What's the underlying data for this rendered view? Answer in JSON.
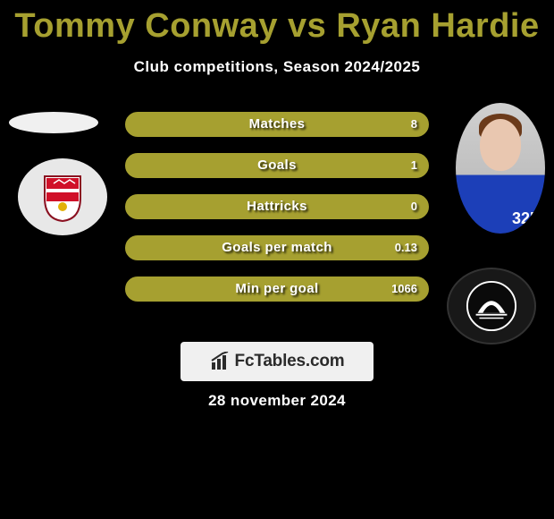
{
  "title_color": "#a6a030",
  "title_parts": {
    "player1": "Tommy Conway",
    "vs": "vs",
    "player2": "Ryan Hardie"
  },
  "subtitle": "Club competitions, Season 2024/2025",
  "bar_border_color": "#a6a030",
  "bar_fill_color": "#a6a030",
  "bars": [
    {
      "label": "Matches",
      "left": "",
      "right": "8"
    },
    {
      "label": "Goals",
      "left": "",
      "right": "1"
    },
    {
      "label": "Hattricks",
      "left": "",
      "right": "0"
    },
    {
      "label": "Goals per match",
      "left": "",
      "right": "0.13"
    },
    {
      "label": "Min per goal",
      "left": "",
      "right": "1066"
    }
  ],
  "brand": "FcTables.com",
  "date": "28 november 2024",
  "icons": {
    "left_crest": "bristol-city-crest",
    "right_crest": "plymouth-argyle-crest",
    "brand": "bar-chart-icon"
  }
}
